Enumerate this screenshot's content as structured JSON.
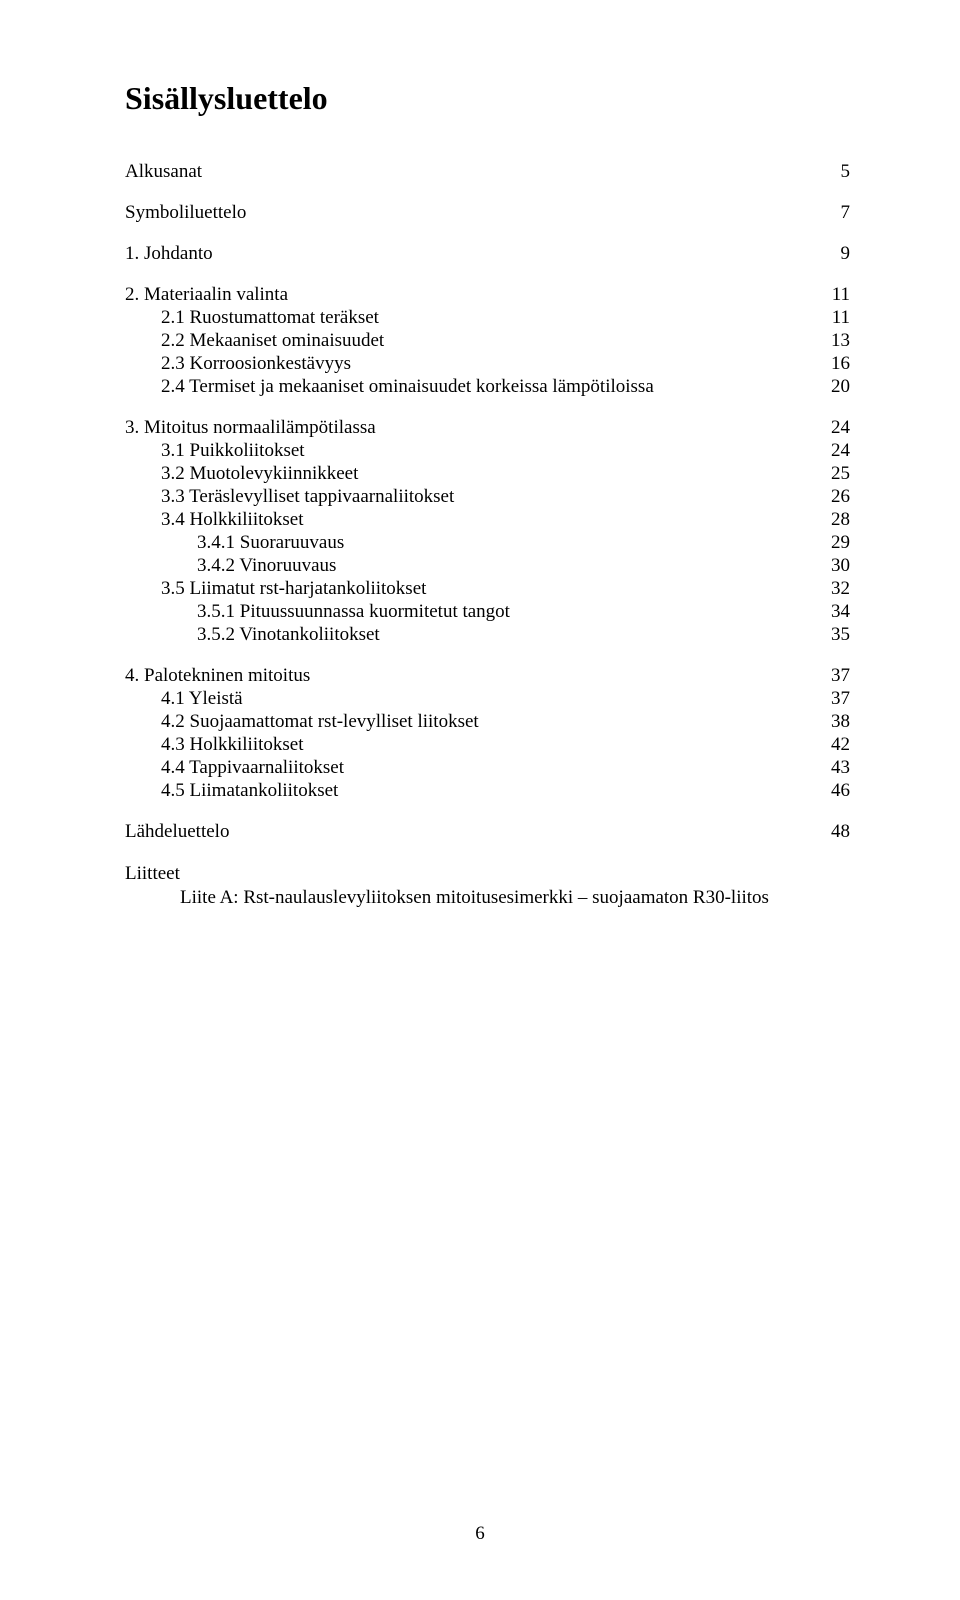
{
  "title": "Sisällysluettelo",
  "page_number": "6",
  "typography": {
    "font_family": "Times New Roman",
    "title_fontsize": 32,
    "body_fontsize": 19,
    "text_color": "#000000",
    "background_color": "#ffffff"
  },
  "toc": [
    {
      "label": "Alkusanat",
      "page": "5",
      "indent": 0,
      "gap": false
    },
    {
      "label": "Symboliluettelo",
      "page": "7",
      "indent": 0,
      "gap": true
    },
    {
      "label": "1.  Johdanto",
      "page": "9",
      "indent": 0,
      "gap": true
    },
    {
      "label": "2.  Materiaalin valinta",
      "page": "11",
      "indent": 0,
      "gap": true
    },
    {
      "label": "2.1  Ruostumattomat teräkset",
      "page": "11",
      "indent": 1,
      "gap": false
    },
    {
      "label": "2.2  Mekaaniset ominaisuudet",
      "page": "13",
      "indent": 1,
      "gap": false,
      "leader": "close"
    },
    {
      "label": "2.3  Korroosionkestävyys",
      "page": "16",
      "indent": 1,
      "gap": false
    },
    {
      "label": "2.4  Termiset ja mekaaniset ominaisuudet korkeissa lämpötiloissa",
      "page": "20",
      "indent": 1,
      "gap": false,
      "leader": "close"
    },
    {
      "label": "3.  Mitoitus normaalilämpötilassa",
      "page": "24",
      "indent": 0,
      "gap": true
    },
    {
      "label": "3.1  Puikkoliitokset",
      "page": "24",
      "indent": 1,
      "gap": false
    },
    {
      "label": "3.2  Muotolevykiinnikkeet",
      "page": "25",
      "indent": 1,
      "gap": false
    },
    {
      "label": "3.3  Teräslevylliset tappivaarnaliitokset",
      "page": "26",
      "indent": 1,
      "gap": false
    },
    {
      "label": "3.4  Holkkiliitokset",
      "page": "28",
      "indent": 1,
      "gap": false
    },
    {
      "label": "3.4.1   Suoraruuvaus",
      "page": "29",
      "indent": 2,
      "gap": false
    },
    {
      "label": "3.4.2   Vinoruuvaus",
      "page": "30",
      "indent": 2,
      "gap": false
    },
    {
      "label": "3.5  Liimatut rst-harjatankoliitokset",
      "page": "32",
      "indent": 1,
      "gap": false
    },
    {
      "label": "3.5.1   Pituussuunnassa kuormitetut tangot",
      "page": "34",
      "indent": 2,
      "gap": false
    },
    {
      "label": "3.5.2   Vinotankoliitokset",
      "page": "35",
      "indent": 2,
      "gap": false
    },
    {
      "label": "4.  Palotekninen mitoitus",
      "page": "37",
      "indent": 0,
      "gap": true
    },
    {
      "label": "4.1  Yleistä",
      "page": "37",
      "indent": 1,
      "gap": false
    },
    {
      "label": "4.2  Suojaamattomat rst-levylliset liitokset",
      "page": "38",
      "indent": 1,
      "gap": false
    },
    {
      "label": "4.3  Holkkiliitokset",
      "page": "42",
      "indent": 1,
      "gap": false
    },
    {
      "label": "4.4  Tappivaarnaliitokset",
      "page": "43",
      "indent": 1,
      "gap": false
    },
    {
      "label": "4.5  Liimatankoliitokset",
      "page": "46",
      "indent": 1,
      "gap": false
    },
    {
      "label": "Lähdeluettelo",
      "page": "48",
      "indent": 0,
      "gap": true
    }
  ],
  "appendix": {
    "heading": "Liitteet",
    "line": "Liite A: Rst-naulauslevyliitoksen mitoitusesimerkki – suojaamaton R30-liitos"
  }
}
